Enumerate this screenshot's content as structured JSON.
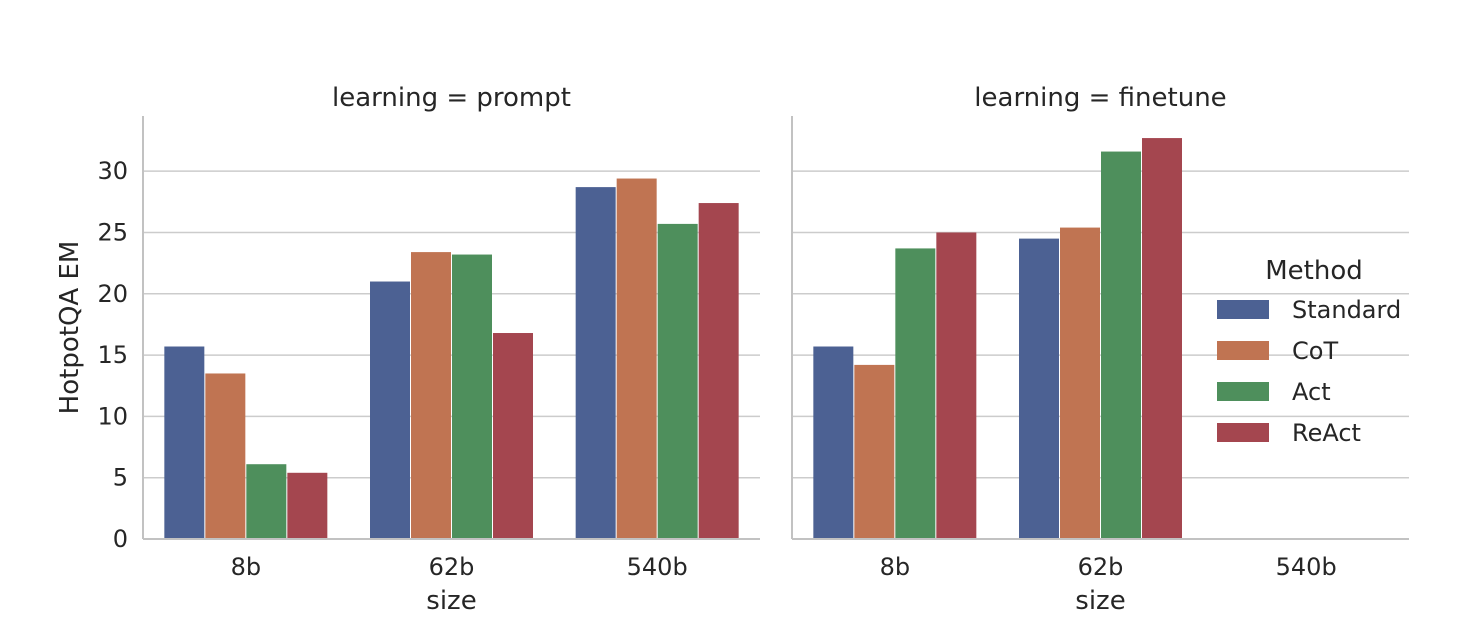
{
  "chart_data": {
    "type": "bar",
    "ylabel": "HotpotQA EM",
    "ylim": [
      0,
      34.5
    ],
    "yticks": [
      0,
      5,
      10,
      15,
      20,
      25,
      30
    ],
    "grid": true,
    "legend": {
      "title": "Method",
      "placement": "right",
      "entries": [
        "Standard",
        "CoT",
        "Act",
        "ReAct"
      ]
    },
    "colors": {
      "Standard": "#4c6193",
      "CoT": "#c07452",
      "Act": "#4e8f5c",
      "ReAct": "#a4464f"
    },
    "panels": [
      {
        "title": "learning = prompt",
        "xlabel": "size",
        "categories": [
          "8b",
          "62b",
          "540b"
        ],
        "series": [
          {
            "name": "Standard",
            "values": [
              15.7,
              21.0,
              28.7
            ]
          },
          {
            "name": "CoT",
            "values": [
              13.5,
              23.4,
              29.4
            ]
          },
          {
            "name": "Act",
            "values": [
              6.1,
              23.2,
              25.7
            ]
          },
          {
            "name": "ReAct",
            "values": [
              5.4,
              16.8,
              27.4
            ]
          }
        ]
      },
      {
        "title": "learning = finetune",
        "xlabel": "size",
        "categories": [
          "8b",
          "62b",
          "540b"
        ],
        "series": [
          {
            "name": "Standard",
            "values": [
              15.7,
              24.5,
              null
            ]
          },
          {
            "name": "CoT",
            "values": [
              14.2,
              25.4,
              null
            ]
          },
          {
            "name": "Act",
            "values": [
              23.7,
              31.6,
              null
            ]
          },
          {
            "name": "ReAct",
            "values": [
              25.0,
              32.7,
              null
            ]
          }
        ]
      }
    ]
  }
}
